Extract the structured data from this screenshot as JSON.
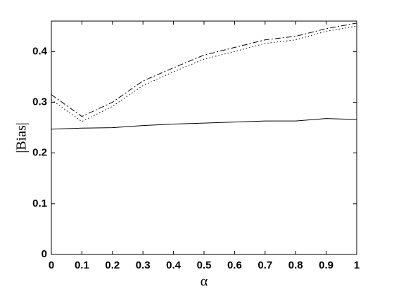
{
  "chart_data": {
    "type": "line",
    "x_label": "α",
    "y_label": "|Bias|",
    "x": [
      0,
      0.1,
      0.2,
      0.3,
      0.4,
      0.5,
      0.6,
      0.7,
      0.8,
      0.9,
      1
    ],
    "series": [
      {
        "color": "#000000",
        "style": "dashdot",
        "values": [
          0.315,
          0.272,
          0.3,
          0.342,
          0.368,
          0.393,
          0.408,
          0.423,
          0.43,
          0.445,
          0.456
        ]
      },
      {
        "color": "#000000",
        "style": "dotted",
        "values": [
          0.305,
          0.262,
          0.292,
          0.333,
          0.36,
          0.385,
          0.4,
          0.416,
          0.423,
          0.44,
          0.45
        ]
      },
      {
        "color": "#000000",
        "style": "solid",
        "values": [
          0.247,
          0.249,
          0.25,
          0.254,
          0.257,
          0.259,
          0.261,
          0.263,
          0.263,
          0.268,
          0.266
        ]
      }
    ],
    "xlim": [
      0,
      1
    ],
    "xticks": [
      0,
      0.1,
      0.2,
      0.3,
      0.4,
      0.5,
      0.6,
      0.7,
      0.8,
      0.9,
      1
    ],
    "ylim": [
      0,
      0.46
    ],
    "yticks": [
      0,
      0.1,
      0.2,
      0.3,
      0.4
    ],
    "grid": false
  }
}
